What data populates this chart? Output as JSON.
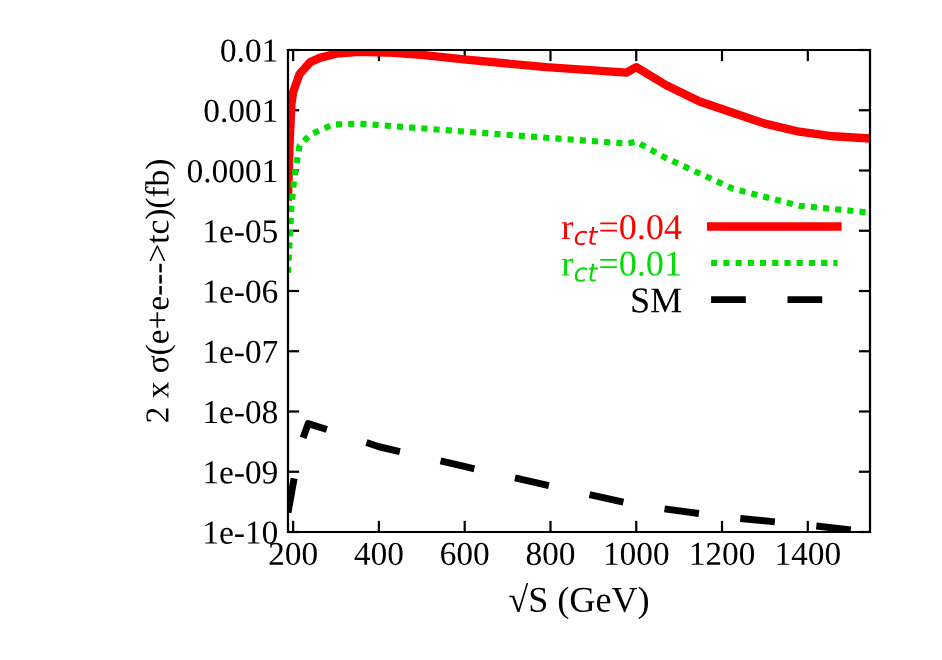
{
  "chart_data": {
    "type": "line",
    "xlabel": "√S (GeV)",
    "ylabel": "2 x σ(e+e--->tc)(fb)",
    "log": "y",
    "xlim": [
      188,
      1545
    ],
    "ylim": [
      1e-10,
      0.01
    ],
    "xticks": [
      200,
      400,
      600,
      800,
      1000,
      1200,
      1400
    ],
    "yticks": [
      {
        "value": 0.01,
        "label": "0.01"
      },
      {
        "value": 0.001,
        "label": "0.001"
      },
      {
        "value": 0.0001,
        "label": "0.0001"
      },
      {
        "value": 1e-05,
        "label": "1e-05"
      },
      {
        "value": 1e-06,
        "label": "1e-06"
      },
      {
        "value": 1e-07,
        "label": "1e-07"
      },
      {
        "value": 1e-08,
        "label": "1e-08"
      },
      {
        "value": 1e-09,
        "label": "1e-09"
      },
      {
        "value": 1e-10,
        "label": "1e-10"
      }
    ],
    "grid": false,
    "legend": "right",
    "marker": "none",
    "series": [
      {
        "name": "r$_{ct}$=0.04",
        "color": "#ff0000",
        "line_style": "solid",
        "x": [
          188,
          192,
          196,
          200,
          215,
          240,
          262,
          300,
          355,
          417,
          500,
          604,
          790,
          977,
          1000,
          1070,
          1148,
          1225,
          1300,
          1380,
          1460,
          1545
        ],
        "values": [
          3.7e-05,
          0.00032,
          0.00126,
          0.002,
          0.004,
          0.0063,
          0.0074,
          0.0087,
          0.0093,
          0.0091,
          0.0083,
          0.0069,
          0.0052,
          0.0042,
          0.0052,
          0.0026,
          0.0014,
          0.00091,
          0.0006,
          0.00044,
          0.00037,
          0.00034
        ]
      },
      {
        "name": "r$_{ct}$=0.01",
        "color": "#00dd00",
        "line_style": "dotted",
        "x": [
          188,
          196,
          203,
          215,
          239,
          293,
          355,
          604,
          790,
          977,
          1000,
          1070,
          1225,
          1380,
          1545
        ],
        "values": [
          2e-06,
          2.5e-05,
          7.9e-05,
          0.00026,
          0.00039,
          0.00058,
          0.0006,
          0.00044,
          0.00035,
          0.00028,
          0.0003,
          0.00016,
          5e-05,
          2.6e-05,
          2e-05
        ]
      },
      {
        "name": "SM",
        "color": "#000000",
        "line_style": "dashed",
        "x": [
          188,
          200,
          215,
          235,
          300,
          400,
          604,
          800,
          1000,
          1200,
          1400,
          1545
        ],
        "values": [
          2.1e-10,
          6.3e-10,
          2.5e-09,
          6.3e-09,
          4.5e-09,
          2.6e-09,
          1.2e-09,
          5.8e-10,
          2.8e-10,
          1.8e-10,
          1.3e-10,
          1e-10
        ]
      }
    ]
  }
}
